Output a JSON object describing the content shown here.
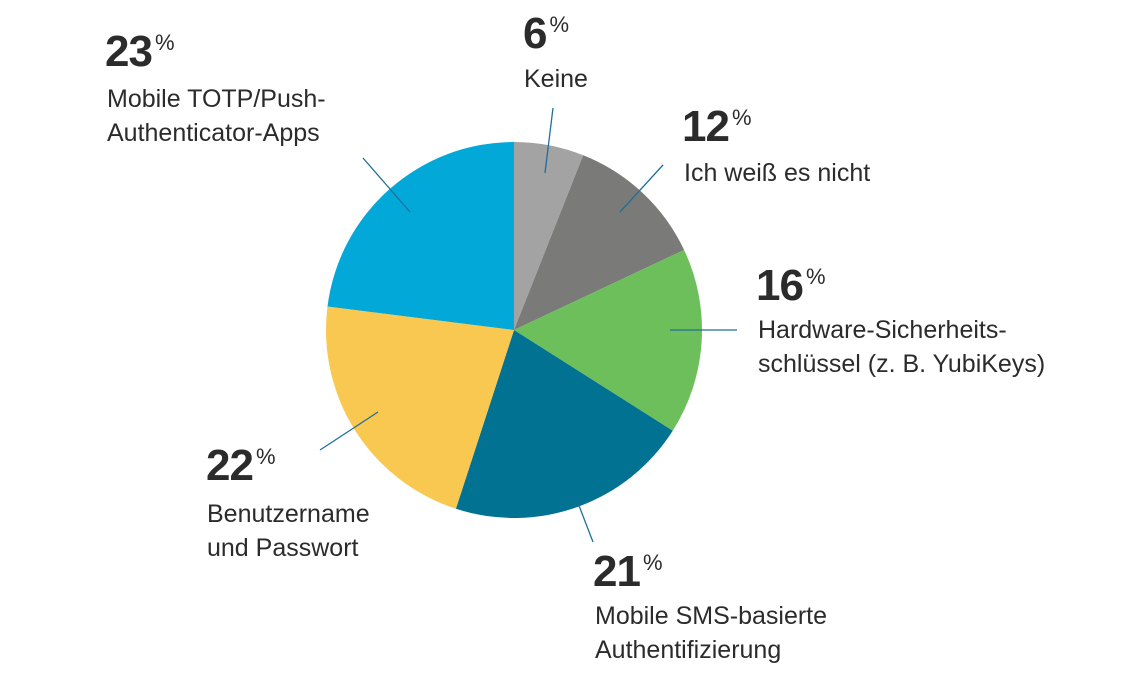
{
  "chart_data": {
    "type": "pie",
    "title": "",
    "unit": "%",
    "slices": [
      {
        "key": "keine",
        "value": 6,
        "color": "#a3a3a3",
        "lines": [
          "Keine"
        ]
      },
      {
        "key": "ich-weiss-es-nicht",
        "value": 12,
        "color": "#7a7a79",
        "lines": [
          "Ich weiß es nicht"
        ]
      },
      {
        "key": "hardware-sicherheitsschluessel",
        "value": 16,
        "color": "#6cbf5b",
        "lines": [
          "Hardware-Sicherheits-",
          "schlüssel (z. B. YubiKeys)"
        ]
      },
      {
        "key": "mobile-sms",
        "value": 21,
        "color": "#017292",
        "lines": [
          "Mobile SMS-basierte",
          "Authentifizierung"
        ]
      },
      {
        "key": "benutzername-passwort",
        "value": 22,
        "color": "#f9c851",
        "lines": [
          "Benutzername",
          "und Passwort"
        ]
      },
      {
        "key": "mobile-totp",
        "value": 23,
        "color": "#02a8d8",
        "lines": [
          "Mobile TOTP/Push-",
          "Authenticator-Apps"
        ]
      }
    ]
  },
  "colors": {
    "leader_line": "#1f6f99",
    "text": "#2b2b2b"
  }
}
